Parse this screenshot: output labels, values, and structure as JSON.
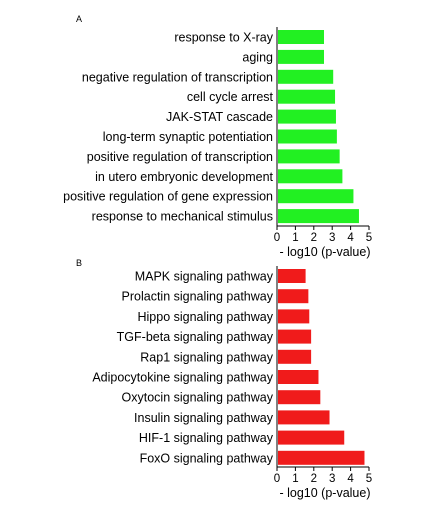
{
  "chart_data": [
    {
      "type": "bar",
      "orientation": "horizontal",
      "panel_label": "A",
      "color": "#22f022",
      "categories": [
        "response to X-ray",
        "aging",
        "negative regulation of transcription",
        "cell cycle arrest",
        "JAK-STAT cascade",
        "long-term synaptic potentiation",
        "positive regulation of transcription",
        "in utero embryonic development",
        "positive regulation of gene expression",
        "response to mechanical stimulus"
      ],
      "values": [
        2.5,
        2.5,
        3.0,
        3.1,
        3.15,
        3.2,
        3.35,
        3.5,
        4.1,
        4.4
      ],
      "xlabel": "- log10 (p-value)",
      "xlim": [
        0,
        5
      ],
      "xticks": [
        "0",
        "1",
        "2",
        "3",
        "4",
        "5"
      ]
    },
    {
      "type": "bar",
      "orientation": "horizontal",
      "panel_label": "B",
      "color": "#f01b1b",
      "categories": [
        "MAPK signaling pathway",
        "Prolactin signaling pathway",
        "Hippo signaling pathway",
        "TGF-beta signaling pathway",
        "Rap1 signaling pathway",
        "Adipocytokine signaling pathway",
        "Oxytocin signaling pathway",
        "Insulin signaling pathway",
        "HIF-1 signaling pathway",
        "FoxO signaling pathway"
      ],
      "values": [
        1.5,
        1.65,
        1.7,
        1.8,
        1.8,
        2.2,
        2.3,
        2.8,
        3.6,
        4.7
      ],
      "xlabel": "- log10 (p-value)",
      "xlim": [
        0,
        5
      ],
      "xticks": [
        "0",
        "1",
        "2",
        "3",
        "4",
        "5"
      ]
    }
  ]
}
